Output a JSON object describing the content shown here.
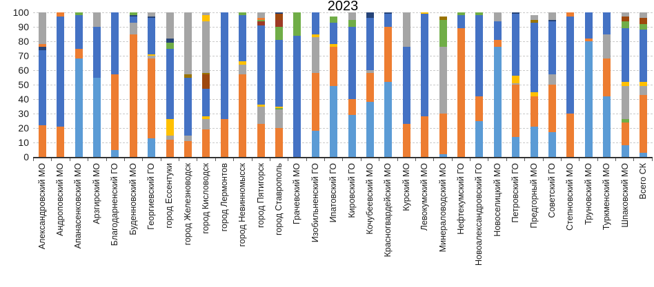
{
  "title": "2023",
  "colors": {
    "lightblue": "#5B9BD5",
    "orange": "#ED7D31",
    "blue": "#4472C4",
    "gray": "#A5A5A5",
    "yellow": "#FFC000",
    "green": "#70AD47",
    "navy": "#264478",
    "brown": "#9E480E",
    "darkred": "#9E3A26",
    "olive": "#997300"
  },
  "chart_data": {
    "type": "bar",
    "stacked": true,
    "title": "2023",
    "xlabel": "",
    "ylabel": "",
    "ylim": [
      0,
      100
    ],
    "yticks": [
      0,
      10,
      20,
      30,
      40,
      50,
      60,
      70,
      80,
      90,
      100
    ],
    "grid": "horizontal-dashed",
    "legend": "none",
    "categories": [
      "Александровский МО",
      "Андроповский МО",
      "Апанасенковский МО",
      "Арзгирский МО",
      "Благодарненский ГО",
      "Буденновский МО",
      "Георгиевский ГО",
      "город Ессентуки",
      "город Железноводск",
      "город Кисловодск",
      "город Лермонтов",
      "город Невинномысск",
      "город Пятигорск",
      "город Ставрополь",
      "Грачевский МО",
      "Изобильненский ГО",
      "Ипатовский ГО",
      "Кировский ГО",
      "Кочубеевский МО",
      "Красногвардейский МО",
      "Курский МО",
      "Левокумский МО",
      "Минераловодский МО",
      "Нефтекумский ГО",
      "Новоалександровский ГО",
      "Новоселицкий МО",
      "Петровский ГО",
      "Предгорный МО",
      "Советский ГО",
      "Степновский МО",
      "Труновский МО",
      "Туркменский МО",
      "Шпаковский МО",
      "Всего СК"
    ],
    "bars": [
      [
        [
          "orange",
          22
        ],
        [
          "blue",
          52
        ],
        [
          "navy",
          2
        ],
        [
          "orange",
          2
        ],
        [
          "gray",
          22
        ]
      ],
      [
        [
          "orange",
          21
        ],
        [
          "blue",
          76
        ],
        [
          "orange",
          3
        ]
      ],
      [
        [
          "lightblue",
          68
        ],
        [
          "orange",
          7
        ],
        [
          "blue",
          23
        ],
        [
          "green",
          2
        ]
      ],
      [
        [
          "lightblue",
          55
        ],
        [
          "blue",
          35
        ],
        [
          "gray",
          10
        ]
      ],
      [
        [
          "lightblue",
          5
        ],
        [
          "orange",
          52
        ],
        [
          "blue",
          43
        ]
      ],
      [
        [
          "orange",
          85
        ],
        [
          "gray",
          8
        ],
        [
          "blue",
          4
        ],
        [
          "navy",
          1
        ],
        [
          "green",
          2
        ]
      ],
      [
        [
          "lightblue",
          13
        ],
        [
          "orange",
          55
        ],
        [
          "gray",
          2
        ],
        [
          "yellow",
          1
        ],
        [
          "blue",
          25
        ],
        [
          "navy",
          1
        ],
        [
          "gray",
          3
        ]
      ],
      [
        [
          "orange",
          12
        ],
        [
          "gray",
          3
        ],
        [
          "yellow",
          11
        ],
        [
          "blue",
          49
        ],
        [
          "green",
          4
        ],
        [
          "navy",
          3
        ],
        [
          "gray",
          18
        ]
      ],
      [
        [
          "orange",
          11
        ],
        [
          "gray",
          4
        ],
        [
          "blue",
          40
        ],
        [
          "olive",
          2
        ],
        [
          "gray",
          43
        ]
      ],
      [
        [
          "orange",
          19
        ],
        [
          "gray",
          7
        ],
        [
          "yellow",
          2
        ],
        [
          "blue",
          19
        ],
        [
          "brown",
          10
        ],
        [
          "olive",
          1
        ],
        [
          "gray",
          36
        ],
        [
          "yellow",
          4
        ],
        [
          "gray",
          2
        ]
      ],
      [
        [
          "orange",
          26
        ],
        [
          "blue",
          74
        ]
      ],
      [
        [
          "orange",
          57
        ],
        [
          "gray",
          7
        ],
        [
          "yellow",
          2
        ],
        [
          "blue",
          32
        ],
        [
          "green",
          2
        ]
      ],
      [
        [
          "orange",
          23
        ],
        [
          "gray",
          12
        ],
        [
          "yellow",
          1
        ],
        [
          "blue",
          55
        ],
        [
          "darkred",
          3
        ],
        [
          "green",
          1
        ],
        [
          "orange",
          1
        ],
        [
          "gray",
          4
        ]
      ],
      [
        [
          "orange",
          20
        ],
        [
          "gray",
          13
        ],
        [
          "green",
          1
        ],
        [
          "yellow",
          1
        ],
        [
          "blue",
          46
        ],
        [
          "green",
          9
        ],
        [
          "darkred",
          5
        ],
        [
          "brown",
          4
        ],
        [
          "navy",
          1
        ]
      ],
      [
        [
          "blue",
          84
        ],
        [
          "green",
          16
        ]
      ],
      [
        [
          "lightblue",
          18
        ],
        [
          "orange",
          40
        ],
        [
          "gray",
          25
        ],
        [
          "yellow",
          2
        ],
        [
          "blue",
          15
        ]
      ],
      [
        [
          "lightblue",
          49
        ],
        [
          "orange",
          27
        ],
        [
          "yellow",
          2
        ],
        [
          "blue",
          15
        ],
        [
          "green",
          4
        ]
      ],
      [
        [
          "lightblue",
          29
        ],
        [
          "orange",
          11
        ],
        [
          "blue",
          50
        ],
        [
          "green",
          5
        ],
        [
          "gray",
          5
        ]
      ],
      [
        [
          "lightblue",
          38
        ],
        [
          "orange",
          20
        ],
        [
          "gray",
          2
        ],
        [
          "blue",
          36
        ],
        [
          "navy",
          4
        ]
      ],
      [
        [
          "lightblue",
          52
        ],
        [
          "orange",
          38
        ],
        [
          "blue",
          9
        ],
        [
          "navy",
          1
        ]
      ],
      [
        [
          "orange",
          23
        ],
        [
          "blue",
          53
        ],
        [
          "gray",
          24
        ]
      ],
      [
        [
          "orange",
          28
        ],
        [
          "blue",
          71
        ],
        [
          "yellow",
          1
        ]
      ],
      [
        [
          "lightblue",
          2
        ],
        [
          "orange",
          28
        ],
        [
          "gray",
          46
        ],
        [
          "green",
          19
        ],
        [
          "olive",
          2
        ]
      ],
      [
        [
          "orange",
          89
        ],
        [
          "blue",
          9
        ],
        [
          "green",
          2
        ]
      ],
      [
        [
          "lightblue",
          25
        ],
        [
          "orange",
          17
        ],
        [
          "blue",
          56
        ],
        [
          "green",
          2
        ]
      ],
      [
        [
          "lightblue",
          76
        ],
        [
          "orange",
          5
        ],
        [
          "blue",
          13
        ],
        [
          "gray",
          6
        ]
      ],
      [
        [
          "lightblue",
          14
        ],
        [
          "orange",
          36
        ],
        [
          "gray",
          1
        ],
        [
          "yellow",
          5
        ],
        [
          "blue",
          43
        ],
        [
          "navy",
          1
        ]
      ],
      [
        [
          "lightblue",
          21
        ],
        [
          "orange",
          21
        ],
        [
          "yellow",
          3
        ],
        [
          "blue",
          48
        ],
        [
          "olive",
          2
        ],
        [
          "gray",
          3
        ]
      ],
      [
        [
          "lightblue",
          17
        ],
        [
          "orange",
          33
        ],
        [
          "gray",
          7
        ],
        [
          "blue",
          37
        ],
        [
          "navy",
          1
        ],
        [
          "gray",
          5
        ]
      ],
      [
        [
          "orange",
          30
        ],
        [
          "blue",
          67
        ],
        [
          "orange",
          3
        ]
      ],
      [
        [
          "lightblue",
          80
        ],
        [
          "orange",
          2
        ],
        [
          "blue",
          18
        ]
      ],
      [
        [
          "lightblue",
          42
        ],
        [
          "orange",
          26
        ],
        [
          "gray",
          17
        ],
        [
          "blue",
          15
        ]
      ],
      [
        [
          "lightblue",
          8
        ],
        [
          "orange",
          16
        ],
        [
          "green",
          2
        ],
        [
          "gray",
          23
        ],
        [
          "yellow",
          3
        ],
        [
          "blue",
          37
        ],
        [
          "green",
          5
        ],
        [
          "brown",
          3
        ],
        [
          "gray",
          3
        ]
      ],
      [
        [
          "lightblue",
          3
        ],
        [
          "orange",
          40
        ],
        [
          "gray",
          6
        ],
        [
          "yellow",
          3
        ],
        [
          "blue",
          36
        ],
        [
          "green",
          4
        ],
        [
          "brown",
          4
        ],
        [
          "gray",
          4
        ]
      ]
    ]
  }
}
